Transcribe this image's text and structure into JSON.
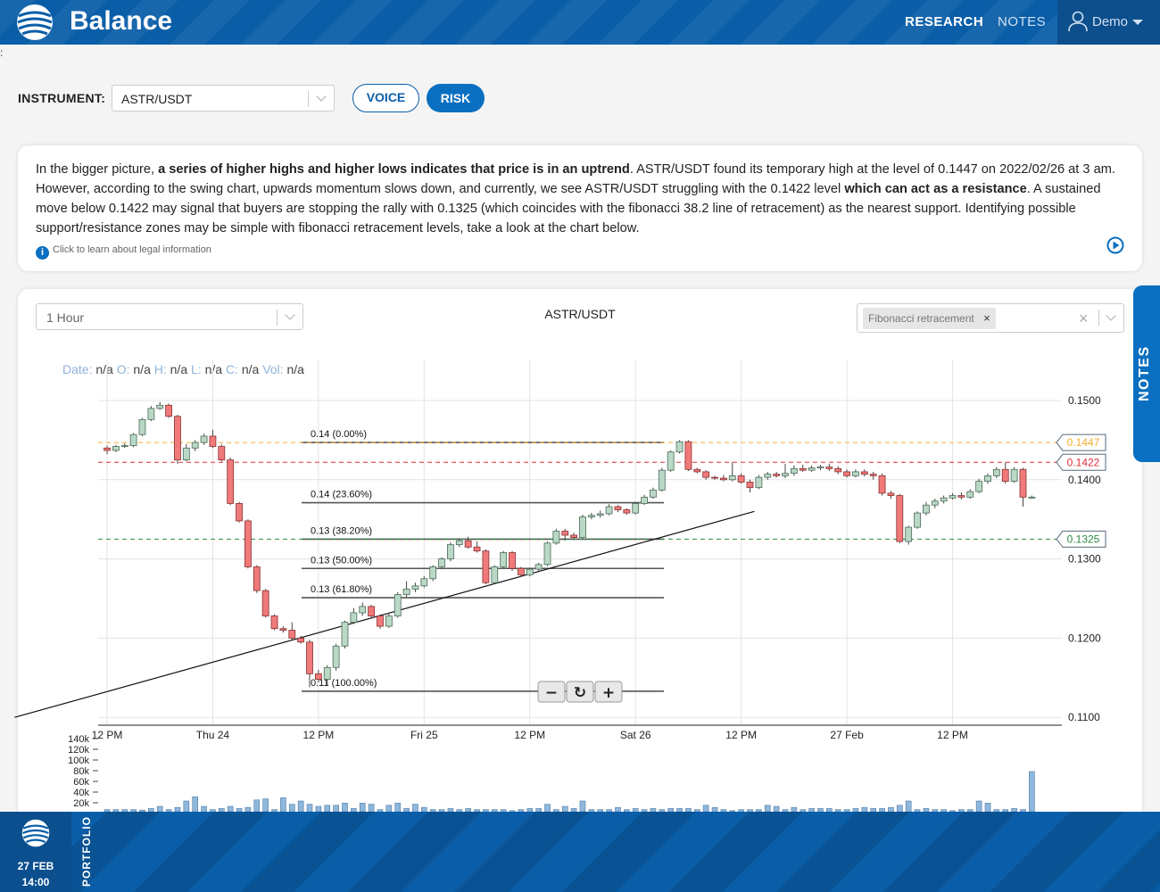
{
  "header": {
    "brand": "Balance",
    "nav": [
      {
        "label": "RESEARCH",
        "active": true
      },
      {
        "label": "NOTES",
        "active": false
      }
    ],
    "user": "Demo",
    "icons": {
      "logo": "balance-logo-icon",
      "user": "user-icon",
      "caret": "caret-down-icon"
    }
  },
  "stray_text": ":",
  "instrument": {
    "label": "INSTRUMENT:",
    "value": "ASTR/USDT",
    "buttons": {
      "voice": "VOICE",
      "risk": "RISK"
    }
  },
  "analysis": {
    "segments": [
      {
        "text": "In the bigger picture, ",
        "bold": false
      },
      {
        "text": "a series of higher highs and higher lows indicates that price is in an uptrend",
        "bold": true
      },
      {
        "text": ". ASTR/USDT found its temporary high at the level of 0.1447 on 2022/02/26 at 3 am. However, according to the swing chart, upwards momentum slows down, and currently, we see ASTR/USDT struggling with the 0.1422 level ",
        "bold": false
      },
      {
        "text": "which can act as a resistance",
        "bold": true
      },
      {
        "text": ". A sustained move below 0.1422 may signal that buyers are stopping the rally with 0.1325 (which coincides with the fibonacci 38.2 line of retracement) as the nearest support. Identifying possible support/resistance zones may be simple with fibonacci retracement levels, take a look at the chart below.",
        "bold": false
      }
    ],
    "legal": "Click to learn about legal information",
    "icons": {
      "info": "info-icon",
      "play": "play-icon"
    }
  },
  "chart_panel": {
    "timeframe": "1 Hour",
    "title": "ASTR/USDT",
    "indicator": "Fibonacci retracement",
    "readout": {
      "date_k": "Date:",
      "o_k": "O:",
      "h_k": "H:",
      "l_k": "L:",
      "c_k": "C:",
      "vol_k": "Vol:",
      "na": "n/a"
    },
    "zoom": {
      "minus": "−",
      "reset": "↻",
      "plus": "+"
    }
  },
  "chart_data": {
    "type": "candlestick",
    "instrument": "ASTR/USDT",
    "interval": "1 Hour",
    "y_ticks": [
      0.15,
      0.14,
      0.13,
      0.12,
      0.11
    ],
    "y_tick_labels": [
      "0.1500",
      "0.1400",
      "0.1300",
      "0.1200",
      "0.1100"
    ],
    "ylim": [
      0.1089,
      0.1562
    ],
    "x_ticks": [
      "12 PM",
      "Thu 24",
      "12 PM",
      "Fri 25",
      "12 PM",
      "Sat 26",
      "12 PM",
      "27 Feb",
      "12 PM"
    ],
    "levels": [
      {
        "value": 0.1447,
        "label": "0.1447",
        "color": "#f0b030"
      },
      {
        "value": 0.1422,
        "label": "0.1422",
        "color": "#e0303a"
      },
      {
        "value": 0.1325,
        "label": "0.1325",
        "color": "#2e8b3e"
      }
    ],
    "fibonacci": [
      {
        "label": "0.14 (0.00%)",
        "value": 0.1447
      },
      {
        "label": "0.14 (23.60%)",
        "value": 0.1371
      },
      {
        "label": "0.13 (38.20%)",
        "value": 0.1325
      },
      {
        "label": "0.13 (50.00%)",
        "value": 0.1288
      },
      {
        "label": "0.13 (61.80%)",
        "value": 0.1251
      },
      {
        "label": "0.11 (100.00%)",
        "value": 0.1133
      }
    ],
    "trendline": [
      [
        -10.5,
        0.11
      ],
      [
        73.5,
        0.136
      ]
    ],
    "candles": [
      [
        0.144,
        0.1437,
        0.1443,
        0.1432
      ],
      [
        0.1437,
        0.1442,
        0.1444,
        0.1435
      ],
      [
        0.1442,
        0.1443,
        0.1446,
        0.144
      ],
      [
        0.1443,
        0.1457,
        0.1459,
        0.1441
      ],
      [
        0.1457,
        0.1476,
        0.1478,
        0.1455
      ],
      [
        0.1476,
        0.149,
        0.1493,
        0.1474
      ],
      [
        0.149,
        0.1494,
        0.1498,
        0.1488
      ],
      [
        0.1494,
        0.148,
        0.1496,
        0.1478
      ],
      [
        0.148,
        0.1425,
        0.1482,
        0.142
      ],
      [
        0.1425,
        0.144,
        0.1445,
        0.1423
      ],
      [
        0.144,
        0.1447,
        0.145,
        0.1436
      ],
      [
        0.1447,
        0.1455,
        0.1458,
        0.1444
      ],
      [
        0.1455,
        0.1442,
        0.1463,
        0.144
      ],
      [
        0.1442,
        0.1425,
        0.1445,
        0.1423
      ],
      [
        0.1425,
        0.137,
        0.1428,
        0.1368
      ],
      [
        0.137,
        0.1348,
        0.1372,
        0.1346
      ],
      [
        0.1348,
        0.129,
        0.135,
        0.1288
      ],
      [
        0.129,
        0.126,
        0.1292,
        0.1257
      ],
      [
        0.126,
        0.1228,
        0.1262,
        0.1226
      ],
      [
        0.1228,
        0.1212,
        0.123,
        0.121
      ],
      [
        0.1212,
        0.121,
        0.1215,
        0.1207
      ],
      [
        0.121,
        0.12,
        0.122,
        0.1198
      ],
      [
        0.12,
        0.1195,
        0.1203,
        0.1193
      ],
      [
        0.1195,
        0.1155,
        0.1198,
        0.1138
      ],
      [
        0.1155,
        0.1148,
        0.116,
        0.1144
      ],
      [
        0.1148,
        0.1163,
        0.1166,
        0.114
      ],
      [
        0.1163,
        0.119,
        0.1193,
        0.1159
      ],
      [
        0.119,
        0.122,
        0.1222,
        0.1187
      ],
      [
        0.122,
        0.1232,
        0.1238,
        0.1218
      ],
      [
        0.1232,
        0.124,
        0.1245,
        0.1228
      ],
      [
        0.124,
        0.1228,
        0.1242,
        0.1225
      ],
      [
        0.1228,
        0.1215,
        0.123,
        0.1212
      ],
      [
        0.1215,
        0.1228,
        0.1232,
        0.1213
      ],
      [
        0.1228,
        0.1255,
        0.1258,
        0.1226
      ],
      [
        0.1255,
        0.1262,
        0.1272,
        0.1252
      ],
      [
        0.1262,
        0.1266,
        0.127,
        0.1258
      ],
      [
        0.1266,
        0.1275,
        0.1278,
        0.1264
      ],
      [
        0.1275,
        0.129,
        0.1292,
        0.1272
      ],
      [
        0.129,
        0.13,
        0.1302,
        0.1287
      ],
      [
        0.13,
        0.1318,
        0.1321,
        0.1297
      ],
      [
        0.1318,
        0.1323,
        0.1326,
        0.1315
      ],
      [
        0.1323,
        0.1315,
        0.1328,
        0.1313
      ],
      [
        0.1315,
        0.131,
        0.1322,
        0.1308
      ],
      [
        0.131,
        0.127,
        0.1312,
        0.1268
      ],
      [
        0.127,
        0.129,
        0.1292,
        0.1268
      ],
      [
        0.129,
        0.1308,
        0.131,
        0.1288
      ],
      [
        0.1308,
        0.1288,
        0.131,
        0.1285
      ],
      [
        0.1288,
        0.128,
        0.129,
        0.1278
      ],
      [
        0.128,
        0.1287,
        0.1289,
        0.1278
      ],
      [
        0.1287,
        0.1293,
        0.1295,
        0.1285
      ],
      [
        0.1293,
        0.132,
        0.1322,
        0.1291
      ],
      [
        0.132,
        0.1335,
        0.1338,
        0.1318
      ],
      [
        0.1335,
        0.133,
        0.1338,
        0.1323
      ],
      [
        0.133,
        0.1327,
        0.1333,
        0.1324
      ],
      [
        0.1327,
        0.1353,
        0.1356,
        0.1325
      ],
      [
        0.1353,
        0.1355,
        0.1358,
        0.135
      ],
      [
        0.1355,
        0.1357,
        0.1361,
        0.1352
      ],
      [
        0.1357,
        0.1366,
        0.1369,
        0.1355
      ],
      [
        0.1366,
        0.1362,
        0.1368,
        0.1359
      ],
      [
        0.1362,
        0.1358,
        0.1364,
        0.1356
      ],
      [
        0.1358,
        0.137,
        0.1372,
        0.1356
      ],
      [
        0.137,
        0.1378,
        0.1381,
        0.1368
      ],
      [
        0.1378,
        0.1387,
        0.139,
        0.1376
      ],
      [
        0.1387,
        0.1412,
        0.1415,
        0.1385
      ],
      [
        0.1412,
        0.1435,
        0.1437,
        0.141
      ],
      [
        0.1435,
        0.1448,
        0.145,
        0.1433
      ],
      [
        0.1448,
        0.1413,
        0.145,
        0.1411
      ],
      [
        0.1413,
        0.141,
        0.1415,
        0.1408
      ],
      [
        0.141,
        0.1403,
        0.1412,
        0.14
      ],
      [
        0.1403,
        0.1402,
        0.1405,
        0.14
      ],
      [
        0.1402,
        0.14,
        0.1406,
        0.1398
      ],
      [
        0.14,
        0.1405,
        0.1422,
        0.1398
      ],
      [
        0.1405,
        0.1397,
        0.1408,
        0.1395
      ],
      [
        0.1397,
        0.139,
        0.14,
        0.1384
      ],
      [
        0.139,
        0.1403,
        0.1406,
        0.1388
      ],
      [
        0.1403,
        0.1407,
        0.141,
        0.14
      ],
      [
        0.1407,
        0.1405,
        0.141,
        0.1403
      ],
      [
        0.1405,
        0.1408,
        0.142,
        0.1402
      ],
      [
        0.1408,
        0.1414,
        0.1418,
        0.1405
      ],
      [
        0.1414,
        0.1412,
        0.1419,
        0.141
      ],
      [
        0.1412,
        0.1415,
        0.1418,
        0.141
      ],
      [
        0.1415,
        0.1416,
        0.1419,
        0.1412
      ],
      [
        0.1416,
        0.1414,
        0.142,
        0.1411
      ],
      [
        0.1414,
        0.141,
        0.1417,
        0.1407
      ],
      [
        0.141,
        0.1405,
        0.1413,
        0.1403
      ],
      [
        0.1405,
        0.141,
        0.1413,
        0.1403
      ],
      [
        0.141,
        0.1407,
        0.1413,
        0.1404
      ],
      [
        0.1407,
        0.1405,
        0.141,
        0.14
      ],
      [
        0.1405,
        0.1383,
        0.1408,
        0.138
      ],
      [
        0.1383,
        0.138,
        0.1386,
        0.1376
      ],
      [
        0.138,
        0.1322,
        0.1382,
        0.132
      ],
      [
        0.1322,
        0.134,
        0.1342,
        0.1318
      ],
      [
        0.134,
        0.1358,
        0.136,
        0.1338
      ],
      [
        0.1358,
        0.1368,
        0.1372,
        0.1355
      ],
      [
        0.1368,
        0.1373,
        0.1376,
        0.1364
      ],
      [
        0.1373,
        0.1377,
        0.138,
        0.137
      ],
      [
        0.1377,
        0.138,
        0.1383,
        0.1375
      ],
      [
        0.138,
        0.1378,
        0.1384,
        0.1375
      ],
      [
        0.1378,
        0.1385,
        0.1388,
        0.1376
      ],
      [
        0.1385,
        0.1398,
        0.1401,
        0.1383
      ],
      [
        0.1398,
        0.1405,
        0.1408,
        0.1395
      ],
      [
        0.1405,
        0.1413,
        0.1416,
        0.1402
      ],
      [
        0.1413,
        0.1398,
        0.1422,
        0.1395
      ],
      [
        0.1398,
        0.1413,
        0.1416,
        0.1396
      ],
      [
        0.1413,
        0.1378,
        0.1415,
        0.1366
      ],
      [
        0.1378,
        0.1378,
        0.138,
        0.1376
      ]
    ],
    "volume": {
      "y_tick_labels": [
        "140k",
        "120k",
        "100k",
        "80k",
        "60k",
        "40k",
        "20k"
      ],
      "values": [
        4,
        4,
        4,
        4,
        3,
        6,
        10,
        4,
        8,
        20,
        28,
        10,
        4,
        6,
        10,
        6,
        8,
        22,
        24,
        4,
        26,
        14,
        20,
        14,
        10,
        12,
        12,
        16,
        6,
        16,
        14,
        4,
        12,
        16,
        6,
        14,
        8,
        4,
        4,
        6,
        4,
        6,
        4,
        4,
        4,
        4,
        2,
        4,
        6,
        6,
        14,
        4,
        10,
        6,
        20,
        4,
        4,
        4,
        8,
        4,
        6,
        4,
        6,
        4,
        6,
        6,
        6,
        4,
        12,
        8,
        4,
        2,
        4,
        4,
        4,
        12,
        10,
        4,
        8,
        4,
        6,
        6,
        6,
        4,
        4,
        6,
        8,
        6,
        6,
        8,
        12,
        20,
        4,
        6,
        4,
        4,
        2,
        4,
        4,
        20,
        16,
        4,
        4,
        6,
        4,
        75
      ]
    }
  },
  "notes_tab": "NOTES",
  "footer": {
    "date": "27 FEB",
    "time": "14:00",
    "portfolio": "PORTFOLIO",
    "logo": "balance-logo-icon"
  }
}
